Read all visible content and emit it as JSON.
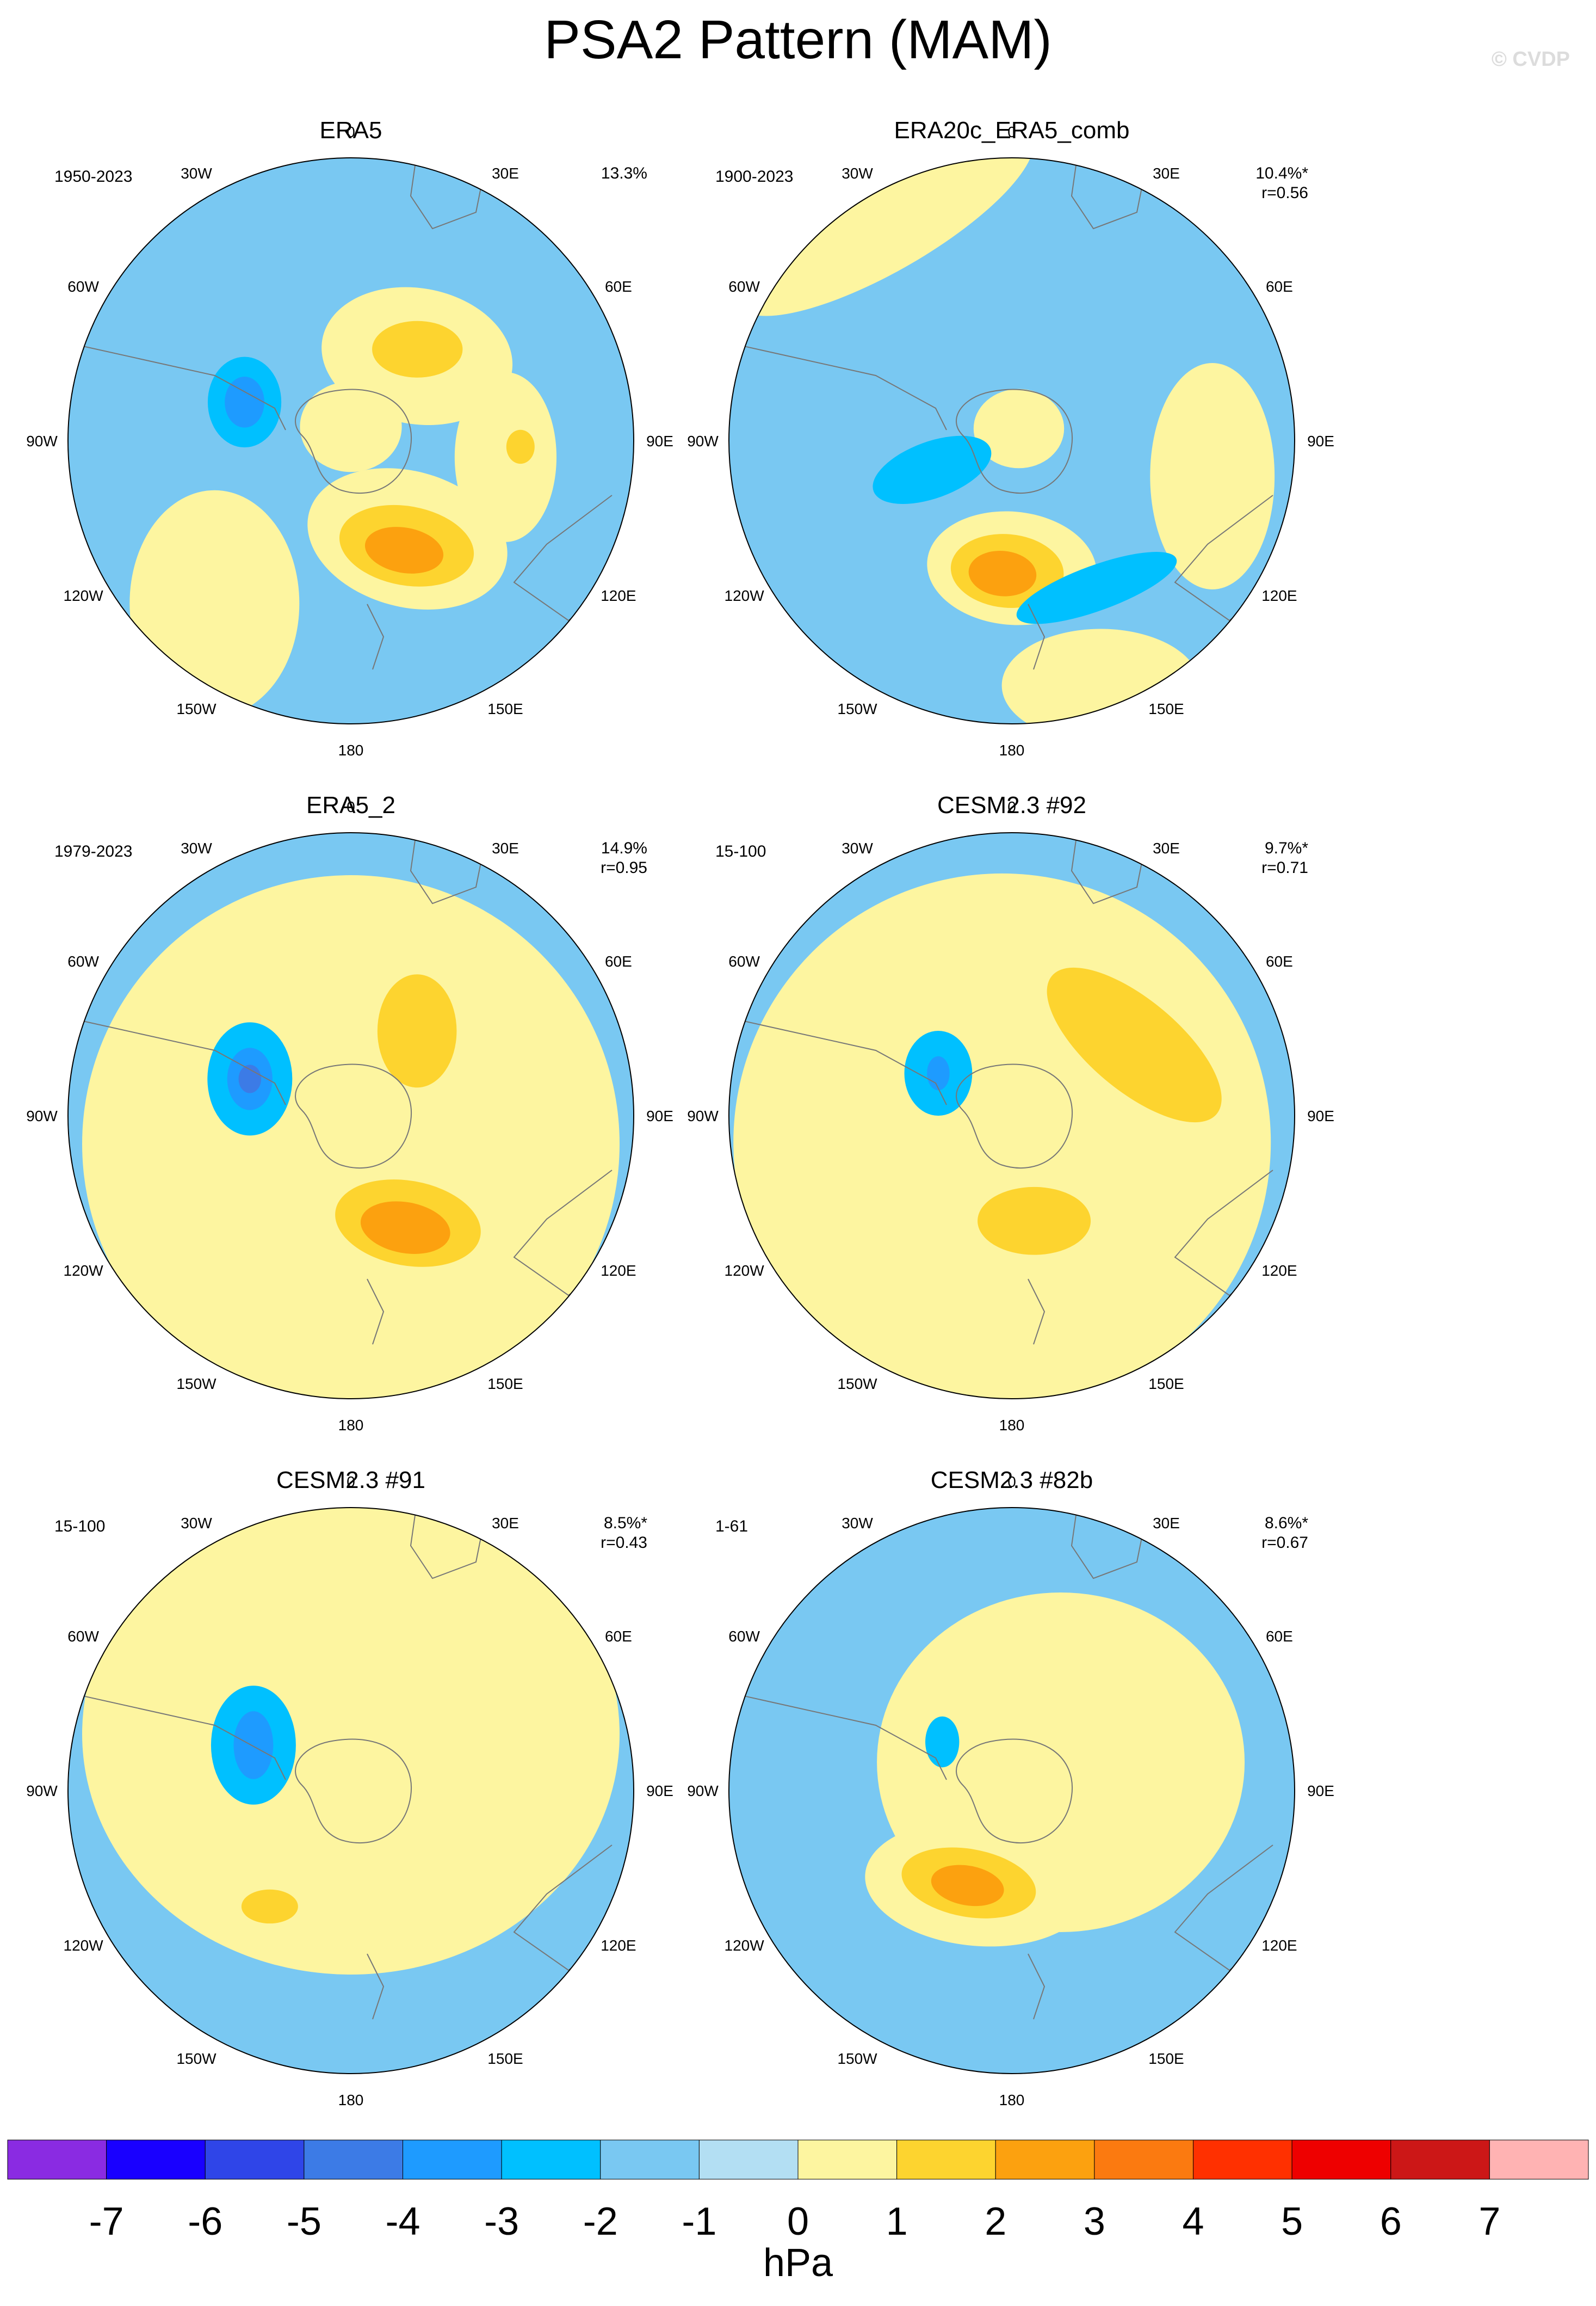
{
  "title": "PSA2 Pattern (MAM)",
  "watermark": "© CVDP",
  "lon_labels": [
    "0",
    "30E",
    "60E",
    "90E",
    "120E",
    "150E",
    "180",
    "150W",
    "120W",
    "90W",
    "60W",
    "30W"
  ],
  "panels": [
    {
      "name": "ERA5",
      "period": "1950-2023",
      "stat1": "13.3%",
      "stat2": "",
      "field": [
        {
          "ang": 38,
          "dist": 0.38,
          "rx": 0.34,
          "ry": 0.24,
          "rot": 10,
          "val": 1
        },
        {
          "ang": 36,
          "dist": 0.4,
          "rx": 0.16,
          "ry": 0.1,
          "rot": 0,
          "val": 2
        },
        {
          "ang": 150,
          "dist": 0.4,
          "rx": 0.36,
          "ry": 0.24,
          "rot": 15,
          "val": 1
        },
        {
          "ang": 152,
          "dist": 0.42,
          "rx": 0.24,
          "ry": 0.14,
          "rot": 10,
          "val": 2
        },
        {
          "ang": 154,
          "dist": 0.43,
          "rx": 0.14,
          "ry": 0.08,
          "rot": 10,
          "val": 3
        },
        {
          "ang": 96,
          "dist": 0.55,
          "rx": 0.18,
          "ry": 0.3,
          "rot": 0,
          "val": 1
        },
        {
          "ang": 92,
          "dist": 0.6,
          "rx": 0.05,
          "ry": 0.06,
          "rot": 0,
          "val": 2
        },
        {
          "ang": 220,
          "dist": 0.75,
          "rx": 0.3,
          "ry": 0.4,
          "rot": 0,
          "val": 1
        },
        {
          "ang": 0,
          "dist": 0.05,
          "rx": 0.18,
          "ry": 0.16,
          "rot": 0,
          "val": 1
        },
        {
          "ang": 290,
          "dist": 0.4,
          "rx": 0.13,
          "ry": 0.16,
          "rot": 0,
          "val": -2
        },
        {
          "ang": 290,
          "dist": 0.4,
          "rx": 0.07,
          "ry": 0.09,
          "rot": 0,
          "val": -3
        }
      ]
    },
    {
      "name": "ERA20c_ERA5_comb",
      "period": "1900-2023",
      "stat1": "10.4%*",
      "stat2": "r=0.56",
      "field": [
        {
          "ang": 330,
          "dist": 0.9,
          "rx": 0.6,
          "ry": 0.18,
          "rot": -30,
          "val": 1
        },
        {
          "ang": 180,
          "dist": 0.45,
          "rx": 0.3,
          "ry": 0.2,
          "rot": 5,
          "val": 1
        },
        {
          "ang": 182,
          "dist": 0.46,
          "rx": 0.2,
          "ry": 0.13,
          "rot": 5,
          "val": 2
        },
        {
          "ang": 184,
          "dist": 0.47,
          "rx": 0.12,
          "ry": 0.08,
          "rot": 5,
          "val": 3
        },
        {
          "ang": 100,
          "dist": 0.72,
          "rx": 0.22,
          "ry": 0.4,
          "rot": 0,
          "val": 1
        },
        {
          "ang": 160,
          "dist": 0.92,
          "rx": 0.35,
          "ry": 0.2,
          "rot": 0,
          "val": 1
        },
        {
          "ang": 30,
          "dist": 0.05,
          "rx": 0.16,
          "ry": 0.14,
          "rot": 0,
          "val": 1
        },
        {
          "ang": 250,
          "dist": 0.3,
          "rx": 0.22,
          "ry": 0.1,
          "rot": -20,
          "val": -2
        },
        {
          "ang": 150,
          "dist": 0.6,
          "rx": 0.3,
          "ry": 0.08,
          "rot": -20,
          "val": -2
        }
      ]
    },
    {
      "name": "ERA5_2",
      "period": "1979-2023",
      "stat1": "14.9%",
      "stat2": "r=0.95",
      "field": [
        {
          "ang": 180,
          "dist": 0.1,
          "rx": 0.95,
          "ry": 0.95,
          "rot": 0,
          "val": 1
        },
        {
          "ang": 38,
          "dist": 0.38,
          "rx": 0.14,
          "ry": 0.2,
          "rot": 0,
          "val": 2
        },
        {
          "ang": 152,
          "dist": 0.43,
          "rx": 0.26,
          "ry": 0.15,
          "rot": 10,
          "val": 2
        },
        {
          "ang": 154,
          "dist": 0.44,
          "rx": 0.16,
          "ry": 0.09,
          "rot": 10,
          "val": 3
        },
        {
          "ang": 290,
          "dist": 0.38,
          "rx": 0.15,
          "ry": 0.2,
          "rot": 0,
          "val": -2
        },
        {
          "ang": 290,
          "dist": 0.38,
          "rx": 0.08,
          "ry": 0.11,
          "rot": 0,
          "val": -3
        },
        {
          "ang": 290,
          "dist": 0.38,
          "rx": 0.04,
          "ry": 0.05,
          "rot": 0,
          "val": -4
        }
      ]
    },
    {
      "name": "CESM2.3 #92",
      "period": "15-100",
      "stat1": "9.7%*",
      "stat2": "r=0.71",
      "field": [
        {
          "ang": 200,
          "dist": 0.1,
          "rx": 0.95,
          "ry": 0.95,
          "rot": 0,
          "val": 1
        },
        {
          "ang": 60,
          "dist": 0.5,
          "rx": 0.38,
          "ry": 0.16,
          "rot": 40,
          "val": 2
        },
        {
          "ang": 168,
          "dist": 0.38,
          "rx": 0.2,
          "ry": 0.12,
          "rot": 0,
          "val": 2
        },
        {
          "ang": 300,
          "dist": 0.3,
          "rx": 0.12,
          "ry": 0.15,
          "rot": 0,
          "val": -2
        },
        {
          "ang": 300,
          "dist": 0.3,
          "rx": 0.04,
          "ry": 0.06,
          "rot": 0,
          "val": -3
        }
      ]
    },
    {
      "name": "CESM2.3 #91",
      "period": "15-100",
      "stat1": "8.5%*",
      "stat2": "r=0.43",
      "field": [
        {
          "ang": 0,
          "dist": 0.2,
          "rx": 0.95,
          "ry": 0.85,
          "rot": 0,
          "val": 1
        },
        {
          "ang": 215,
          "dist": 0.5,
          "rx": 0.1,
          "ry": 0.06,
          "rot": 0,
          "val": 2
        },
        {
          "ang": 295,
          "dist": 0.38,
          "rx": 0.15,
          "ry": 0.21,
          "rot": 0,
          "val": -2
        },
        {
          "ang": 295,
          "dist": 0.38,
          "rx": 0.07,
          "ry": 0.12,
          "rot": 0,
          "val": -3
        }
      ]
    },
    {
      "name": "CESM2.3 #82b",
      "period": "1-61",
      "stat1": "8.6%*",
      "stat2": "r=0.67",
      "field": [
        {
          "ang": 60,
          "dist": 0.2,
          "rx": 0.65,
          "ry": 0.6,
          "rot": 0,
          "val": 1
        },
        {
          "ang": 200,
          "dist": 0.35,
          "rx": 0.4,
          "ry": 0.22,
          "rot": 5,
          "val": 1
        },
        {
          "ang": 205,
          "dist": 0.36,
          "rx": 0.24,
          "ry": 0.12,
          "rot": 10,
          "val": 2
        },
        {
          "ang": 205,
          "dist": 0.37,
          "rx": 0.13,
          "ry": 0.07,
          "rot": 10,
          "val": 3
        },
        {
          "ang": 305,
          "dist": 0.3,
          "rx": 0.06,
          "ry": 0.09,
          "rot": 0,
          "val": -2
        }
      ]
    }
  ],
  "colorbar": {
    "units": "hPa",
    "ticks": [
      "-7",
      "-6",
      "-5",
      "-4",
      "-3",
      "-2",
      "-1",
      "0",
      "1",
      "2",
      "3",
      "4",
      "5",
      "6",
      "7"
    ],
    "colors": [
      "#8a2be2",
      "#1900ff",
      "#2f45e8",
      "#3c7be6",
      "#1e9bff",
      "#00c0ff",
      "#79c8f2",
      "#b3dff3",
      "#fdf5a0",
      "#fdd42f",
      "#fca10f",
      "#fb7a10",
      "#ff3000",
      "#ee0000",
      "#cc1717",
      "#ffb3b3"
    ]
  }
}
